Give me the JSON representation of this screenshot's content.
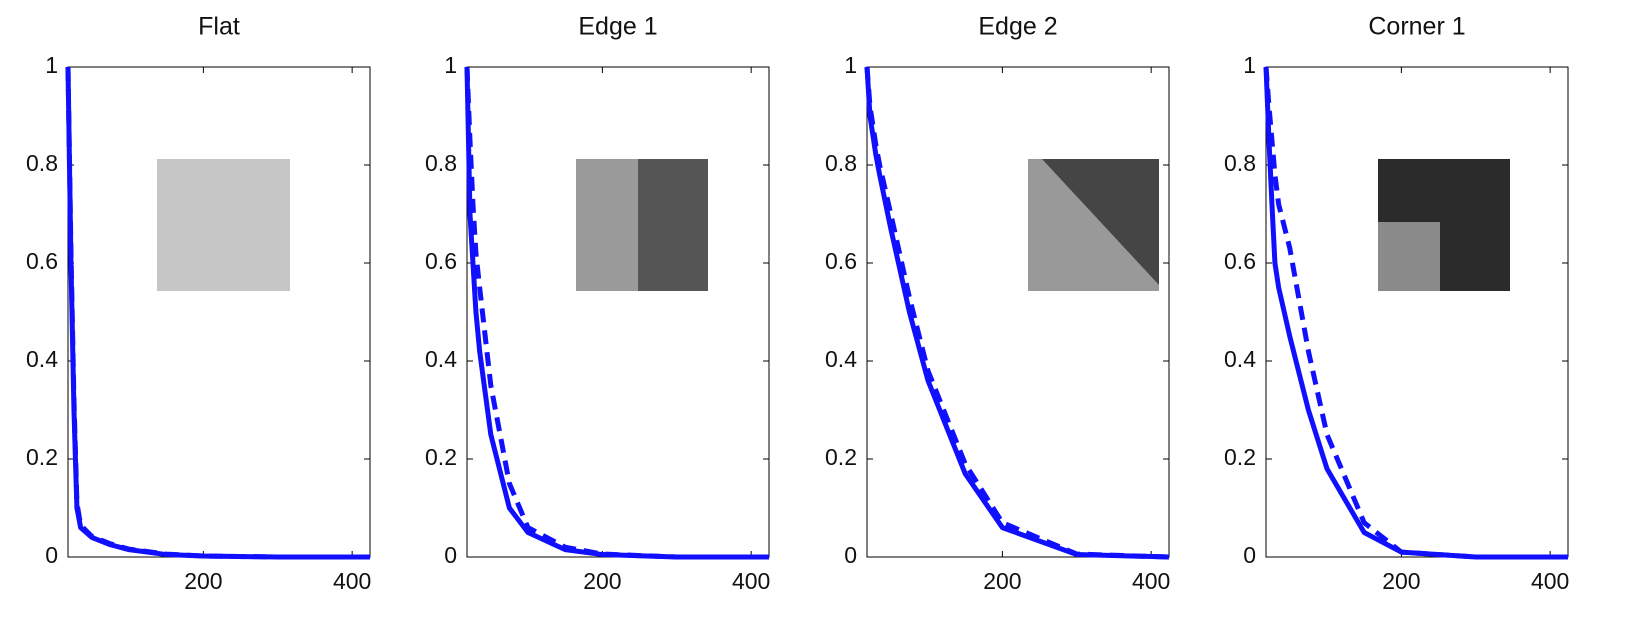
{
  "chart_data": [
    {
      "type": "line",
      "title": "Flat",
      "x": [
        18,
        22,
        26,
        30,
        35,
        50,
        75,
        100,
        150,
        200,
        300,
        424
      ],
      "series": [
        {
          "color": "#1010ff",
          "dashed": false,
          "values": [
            1,
            0.6,
            0.3,
            0.1,
            0.06,
            0.04,
            0.025,
            0.015,
            0.005,
            0.002,
            0,
            0
          ]
        },
        {
          "color": "#1010ff",
          "dashed": true,
          "values": [
            1,
            0.62,
            0.32,
            0.11,
            0.065,
            0.042,
            0.027,
            0.016,
            0.006,
            0.002,
            0,
            0
          ]
        }
      ],
      "xlim": [
        18,
        424
      ],
      "xticks": [
        200,
        400
      ],
      "ylim": [
        0,
        1
      ],
      "yticks": [
        0,
        0.2,
        0.4,
        0.6,
        0.8,
        1
      ]
    },
    {
      "type": "line",
      "title": "Edge 1",
      "x": [
        18,
        22,
        26,
        30,
        35,
        50,
        75,
        100,
        150,
        200,
        300,
        424
      ],
      "series": [
        {
          "color": "#1010ff",
          "dashed": false,
          "values": [
            1,
            0.7,
            0.6,
            0.5,
            0.42,
            0.25,
            0.1,
            0.05,
            0.015,
            0.005,
            0,
            0
          ]
        },
        {
          "color": "#1010ff",
          "dashed": true,
          "values": [
            1,
            0.85,
            0.72,
            0.62,
            0.55,
            0.35,
            0.15,
            0.06,
            0.02,
            0.006,
            0,
            0
          ]
        }
      ],
      "xlim": [
        18,
        424
      ],
      "xticks": [
        200,
        400
      ],
      "ylim": [
        0,
        1
      ],
      "yticks": [
        0,
        0.2,
        0.4,
        0.6,
        0.8,
        1
      ]
    },
    {
      "type": "line",
      "title": "Edge 2",
      "x": [
        18,
        22,
        26,
        30,
        35,
        50,
        75,
        100,
        150,
        200,
        300,
        424
      ],
      "series": [
        {
          "color": "#1010ff",
          "dashed": false,
          "values": [
            1,
            0.9,
            0.86,
            0.82,
            0.78,
            0.67,
            0.5,
            0.36,
            0.17,
            0.06,
            0.005,
            0
          ]
        },
        {
          "color": "#1010ff",
          "dashed": true,
          "values": [
            1,
            0.92,
            0.88,
            0.84,
            0.8,
            0.7,
            0.53,
            0.38,
            0.19,
            0.07,
            0.006,
            0
          ]
        }
      ],
      "xlim": [
        18,
        424
      ],
      "xticks": [
        200,
        400
      ],
      "ylim": [
        0,
        1
      ],
      "yticks": [
        0,
        0.2,
        0.4,
        0.6,
        0.8,
        1
      ]
    },
    {
      "type": "line",
      "title": "Corner 1",
      "x": [
        18,
        22,
        26,
        30,
        35,
        50,
        75,
        100,
        150,
        200,
        300,
        424
      ],
      "series": [
        {
          "color": "#1010ff",
          "dashed": false,
          "values": [
            1,
            0.85,
            0.72,
            0.6,
            0.55,
            0.45,
            0.3,
            0.18,
            0.05,
            0.01,
            0,
            0
          ]
        },
        {
          "color": "#1010ff",
          "dashed": true,
          "values": [
            1,
            0.92,
            0.85,
            0.78,
            0.72,
            0.63,
            0.42,
            0.25,
            0.07,
            0.01,
            0,
            0
          ]
        }
      ],
      "xlim": [
        18,
        424
      ],
      "xticks": [
        200,
        400
      ],
      "ylim": [
        0,
        1
      ],
      "yticks": [
        0,
        0.2,
        0.4,
        0.6,
        0.8,
        1
      ]
    }
  ]
}
